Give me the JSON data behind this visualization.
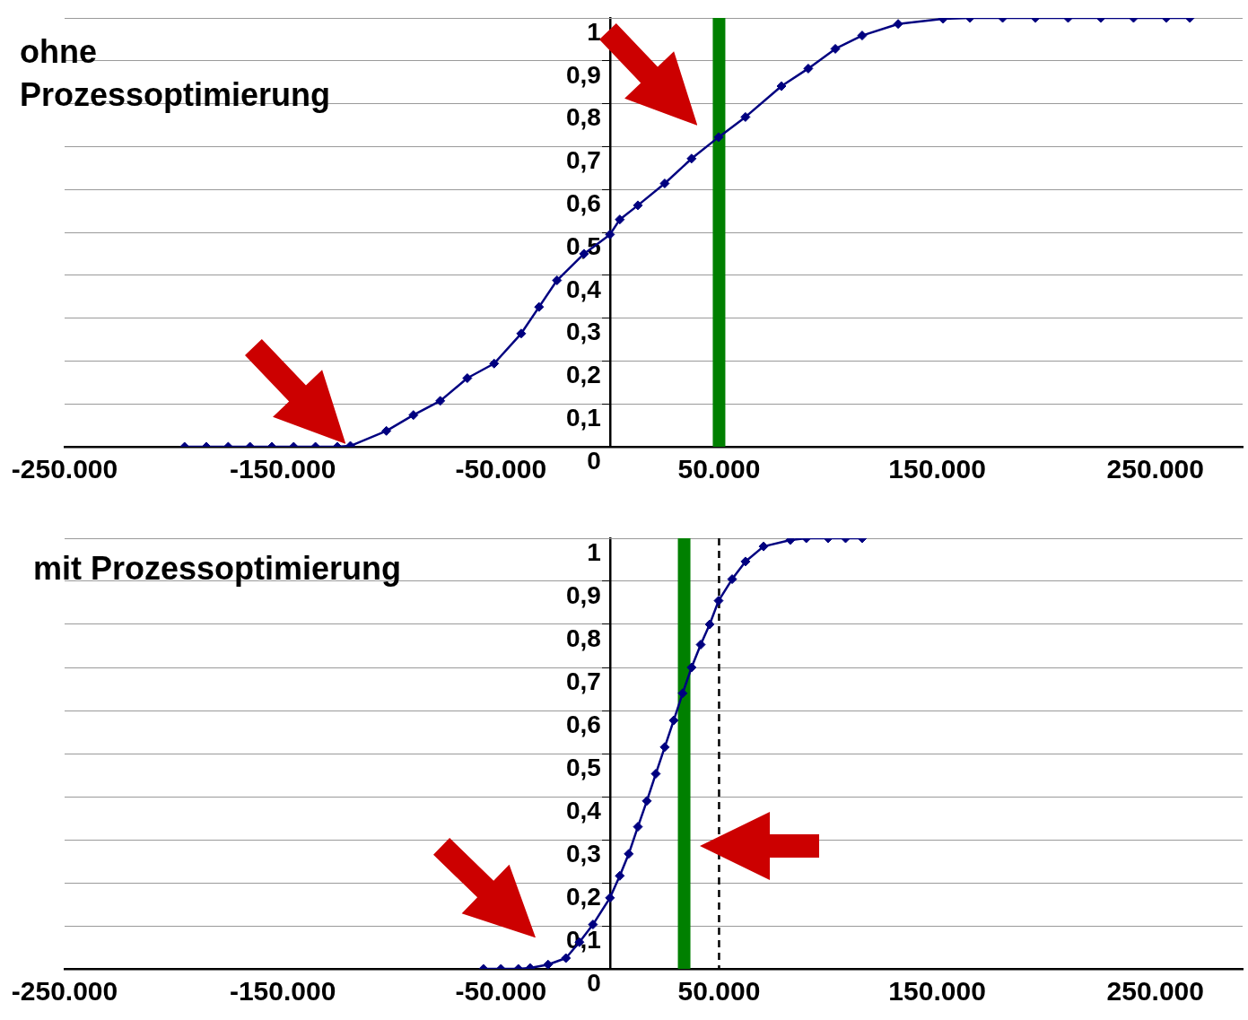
{
  "chart_data": [
    {
      "type": "line",
      "title": "ohne Prozessoptimierung",
      "x": [
        -195000,
        -185000,
        -175000,
        -165000,
        -155000,
        -145000,
        -135000,
        -125000,
        -119000,
        -102500,
        -90100,
        -77800,
        -65400,
        -53100,
        -40700,
        -32500,
        -24300,
        -11900,
        0,
        4500,
        12800,
        25100,
        37400,
        49800,
        62100,
        78600,
        90900,
        103300,
        115600,
        132100,
        152700,
        165000,
        180000,
        195000,
        210000,
        225000,
        240000,
        255000,
        265800
      ],
      "series": [
        {
          "color": "#000080",
          "values": [
            0,
            0,
            0,
            0,
            0,
            0,
            0,
            0,
            0.002,
            0.037,
            0.074,
            0.107,
            0.16,
            0.194,
            0.264,
            0.326,
            0.388,
            0.45,
            0.495,
            0.53,
            0.563,
            0.614,
            0.672,
            0.722,
            0.769,
            0.841,
            0.882,
            0.928,
            0.959,
            0.986,
            0.998,
            1,
            1,
            1,
            1,
            1,
            1,
            1,
            1
          ]
        }
      ],
      "xlim": [
        -250000,
        290000
      ],
      "xticks": [
        {
          "value": -250000,
          "label": "-250.000"
        },
        {
          "value": -150000,
          "label": "-150.000"
        },
        {
          "value": -50000,
          "label": "-50.000"
        },
        {
          "value": 50000,
          "label": "50.000"
        },
        {
          "value": 150000,
          "label": "150.000"
        },
        {
          "value": 250000,
          "label": "250.000"
        }
      ],
      "ylim": [
        0,
        1
      ],
      "yticks": [
        {
          "value": 0,
          "label": "0"
        },
        {
          "value": 0.1,
          "label": "0,1"
        },
        {
          "value": 0.2,
          "label": "0,2"
        },
        {
          "value": 0.3,
          "label": "0,3"
        },
        {
          "value": 0.4,
          "label": "0,4"
        },
        {
          "value": 0.5,
          "label": "0,5"
        },
        {
          "value": 0.6,
          "label": "0,6"
        },
        {
          "value": 0.7,
          "label": "0,7"
        },
        {
          "value": 0.8,
          "label": "0,8"
        },
        {
          "value": 0.9,
          "label": "0,9"
        },
        {
          "value": 1,
          "label": "1"
        }
      ],
      "ref_lines": [
        {
          "axis": "x",
          "value": 50000,
          "color": "#008000",
          "line_style": "solid"
        }
      ],
      "grid": "y",
      "marker": "diamond",
      "line_style": "solid",
      "legend": false
    },
    {
      "type": "line",
      "title": "mit Prozessoptimierung",
      "x": [
        -58000,
        -50000,
        -42000,
        -36600,
        -28400,
        -20200,
        -14000,
        -7800,
        0,
        4500,
        8600,
        12800,
        16900,
        21000,
        25100,
        29200,
        33300,
        37400,
        41600,
        45700,
        49800,
        56000,
        62100,
        70400,
        82700,
        90000,
        100000,
        108000,
        115600
      ],
      "series": [
        {
          "color": "#000080",
          "values": [
            0,
            0,
            0,
            0.002,
            0.01,
            0.025,
            0.062,
            0.103,
            0.165,
            0.216,
            0.267,
            0.33,
            0.39,
            0.453,
            0.515,
            0.577,
            0.64,
            0.7,
            0.753,
            0.8,
            0.855,
            0.905,
            0.946,
            0.981,
            0.996,
            1,
            1,
            1,
            1
          ]
        }
      ],
      "xlim": [
        -250000,
        290000
      ],
      "xticks": [
        {
          "value": -250000,
          "label": "-250.000"
        },
        {
          "value": -150000,
          "label": "-150.000"
        },
        {
          "value": -50000,
          "label": "-50.000"
        },
        {
          "value": 50000,
          "label": "50.000"
        },
        {
          "value": 150000,
          "label": "150.000"
        },
        {
          "value": 250000,
          "label": "250.000"
        }
      ],
      "ylim": [
        0,
        1
      ],
      "yticks": [
        {
          "value": 0,
          "label": "0"
        },
        {
          "value": 0.1,
          "label": "0,1"
        },
        {
          "value": 0.2,
          "label": "0,2"
        },
        {
          "value": 0.3,
          "label": "0,3"
        },
        {
          "value": 0.4,
          "label": "0,4"
        },
        {
          "value": 0.5,
          "label": "0,5"
        },
        {
          "value": 0.6,
          "label": "0,6"
        },
        {
          "value": 0.7,
          "label": "0,7"
        },
        {
          "value": 0.8,
          "label": "0,8"
        },
        {
          "value": 0.9,
          "label": "0,9"
        },
        {
          "value": 1,
          "label": "1"
        }
      ],
      "ref_lines": [
        {
          "axis": "x",
          "value": 34000,
          "color": "#008000",
          "line_style": "solid"
        },
        {
          "axis": "x",
          "value": 50000,
          "color": "#000000",
          "line_style": "dashed"
        }
      ],
      "grid": "y",
      "marker": "diamond",
      "line_style": "solid",
      "legend": false
    }
  ]
}
